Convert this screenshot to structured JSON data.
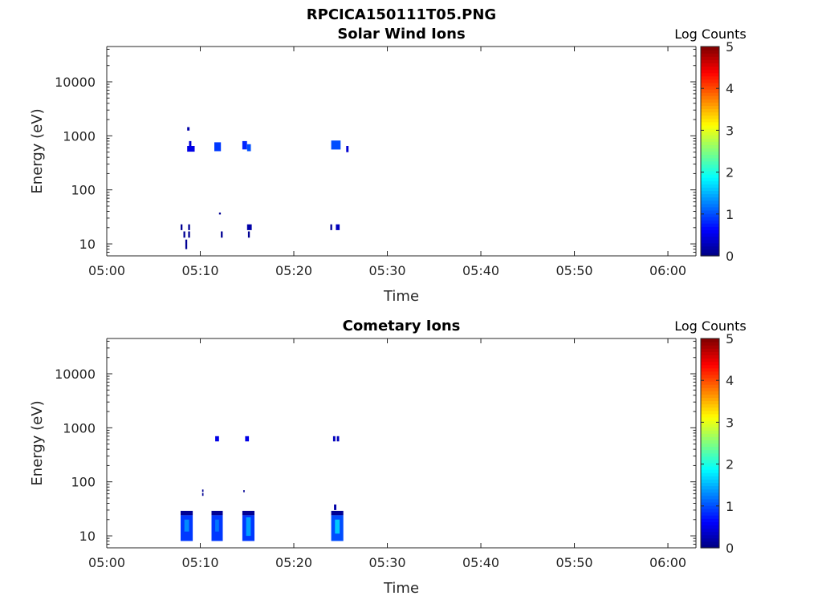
{
  "figure_title": "RPCICA150111T05.PNG",
  "colorbar": {
    "label": "Log Counts",
    "range": [
      0,
      5
    ],
    "ticks": [
      "0",
      "1",
      "2",
      "3",
      "4",
      "5"
    ],
    "colormap": "jet"
  },
  "chart_data": [
    {
      "type": "heatmap",
      "title": "Solar Wind Ions",
      "xlabel": "Time",
      "ylabel": "Energy (eV)",
      "x_ticks": [
        "05:00",
        "05:10",
        "05:20",
        "05:30",
        "05:40",
        "05:50",
        "06:00"
      ],
      "xlim": [
        "05:00",
        "06:03"
      ],
      "y_ticks": [
        "10",
        "100",
        "1000",
        "10000"
      ],
      "y_scale": "log",
      "ylim": [
        6,
        45000
      ],
      "units": {
        "x": "minutes after 05:00",
        "y": "eV",
        "value": "log counts"
      },
      "cells": [
        {
          "t": 8.6,
          "dt": 0.25,
          "e_lo": 1250,
          "e_hi": 1450,
          "v": 0.2
        },
        {
          "t": 8.8,
          "dt": 0.25,
          "e_lo": 650,
          "e_hi": 800,
          "v": 0.4
        },
        {
          "t": 8.6,
          "dt": 0.8,
          "e_lo": 510,
          "e_hi": 650,
          "v": 0.5
        },
        {
          "t": 11.5,
          "dt": 0.7,
          "e_lo": 520,
          "e_hi": 760,
          "v": 0.9
        },
        {
          "t": 14.5,
          "dt": 0.5,
          "e_lo": 560,
          "e_hi": 800,
          "v": 0.8
        },
        {
          "t": 15.0,
          "dt": 0.4,
          "e_lo": 520,
          "e_hi": 700,
          "v": 1.0
        },
        {
          "t": 24.0,
          "dt": 1.0,
          "e_lo": 560,
          "e_hi": 820,
          "v": 1.0
        },
        {
          "t": 25.6,
          "dt": 0.25,
          "e_lo": 500,
          "e_hi": 650,
          "v": 0.4
        },
        {
          "t": 7.9,
          "dt": 0.2,
          "e_lo": 18,
          "e_hi": 23,
          "v": 0.1
        },
        {
          "t": 8.7,
          "dt": 0.2,
          "e_lo": 18,
          "e_hi": 23,
          "v": 0.1
        },
        {
          "t": 8.2,
          "dt": 0.2,
          "e_lo": 13,
          "e_hi": 17,
          "v": 0.1
        },
        {
          "t": 8.7,
          "dt": 0.2,
          "e_lo": 13,
          "e_hi": 17,
          "v": 0.1
        },
        {
          "t": 8.4,
          "dt": 0.2,
          "e_lo": 8,
          "e_hi": 12,
          "v": 0.1
        },
        {
          "t": 12.0,
          "dt": 0.2,
          "e_lo": 35,
          "e_hi": 38,
          "v": 0.1
        },
        {
          "t": 12.2,
          "dt": 0.2,
          "e_lo": 13,
          "e_hi": 17,
          "v": 0.1
        },
        {
          "t": 15.0,
          "dt": 0.5,
          "e_lo": 18,
          "e_hi": 23,
          "v": 0.2
        },
        {
          "t": 15.1,
          "dt": 0.2,
          "e_lo": 13,
          "e_hi": 17,
          "v": 0.1
        },
        {
          "t": 23.9,
          "dt": 0.2,
          "e_lo": 18,
          "e_hi": 23,
          "v": 0.1
        },
        {
          "t": 24.5,
          "dt": 0.4,
          "e_lo": 18,
          "e_hi": 23,
          "v": 0.3
        }
      ]
    },
    {
      "type": "heatmap",
      "title": "Cometary Ions",
      "xlabel": "Time",
      "ylabel": "Energy (eV)",
      "x_ticks": [
        "05:00",
        "05:10",
        "05:20",
        "05:30",
        "05:40",
        "05:50",
        "06:00"
      ],
      "xlim": [
        "05:00",
        "06:03"
      ],
      "y_ticks": [
        "10",
        "100",
        "1000",
        "10000"
      ],
      "y_scale": "log",
      "ylim": [
        6,
        45000
      ],
      "units": {
        "x": "minutes after 05:00",
        "y": "eV",
        "value": "log counts"
      },
      "cells": [
        {
          "t": 11.6,
          "dt": 0.4,
          "e_lo": 560,
          "e_hi": 700,
          "v": 0.5
        },
        {
          "t": 14.8,
          "dt": 0.4,
          "e_lo": 560,
          "e_hi": 700,
          "v": 0.5
        },
        {
          "t": 24.2,
          "dt": 0.25,
          "e_lo": 560,
          "e_hi": 700,
          "v": 0.3
        },
        {
          "t": 24.6,
          "dt": 0.25,
          "e_lo": 560,
          "e_hi": 700,
          "v": 0.3
        },
        {
          "t": 10.2,
          "dt": 0.15,
          "e_lo": 55,
          "e_hi": 62,
          "v": 0.1
        },
        {
          "t": 10.2,
          "dt": 0.15,
          "e_lo": 65,
          "e_hi": 72,
          "v": 0.1
        },
        {
          "t": 14.6,
          "dt": 0.15,
          "e_lo": 64,
          "e_hi": 70,
          "v": 0.1
        },
        {
          "t": 24.3,
          "dt": 0.25,
          "e_lo": 30,
          "e_hi": 38,
          "v": 0.2
        },
        {
          "t": 7.9,
          "dt": 1.3,
          "e_lo": 24,
          "e_hi": 29,
          "v": 0.1
        },
        {
          "t": 7.9,
          "dt": 1.3,
          "e_lo": 8,
          "e_hi": 24,
          "v": 0.9
        },
        {
          "t": 8.3,
          "dt": 0.5,
          "e_lo": 12,
          "e_hi": 20,
          "v": 1.3
        },
        {
          "t": 11.2,
          "dt": 1.2,
          "e_lo": 24,
          "e_hi": 29,
          "v": 0.1
        },
        {
          "t": 11.2,
          "dt": 1.2,
          "e_lo": 8,
          "e_hi": 24,
          "v": 0.9
        },
        {
          "t": 11.6,
          "dt": 0.4,
          "e_lo": 12,
          "e_hi": 20,
          "v": 1.2
        },
        {
          "t": 14.5,
          "dt": 1.3,
          "e_lo": 24,
          "e_hi": 29,
          "v": 0.1
        },
        {
          "t": 14.5,
          "dt": 1.3,
          "e_lo": 8,
          "e_hi": 24,
          "v": 0.9
        },
        {
          "t": 14.9,
          "dt": 0.5,
          "e_lo": 10,
          "e_hi": 22,
          "v": 1.4
        },
        {
          "t": 24.0,
          "dt": 1.3,
          "e_lo": 24,
          "e_hi": 29,
          "v": 0.1
        },
        {
          "t": 24.0,
          "dt": 1.3,
          "e_lo": 8,
          "e_hi": 24,
          "v": 1.0
        },
        {
          "t": 24.4,
          "dt": 0.5,
          "e_lo": 11,
          "e_hi": 20,
          "v": 1.6
        }
      ]
    }
  ]
}
